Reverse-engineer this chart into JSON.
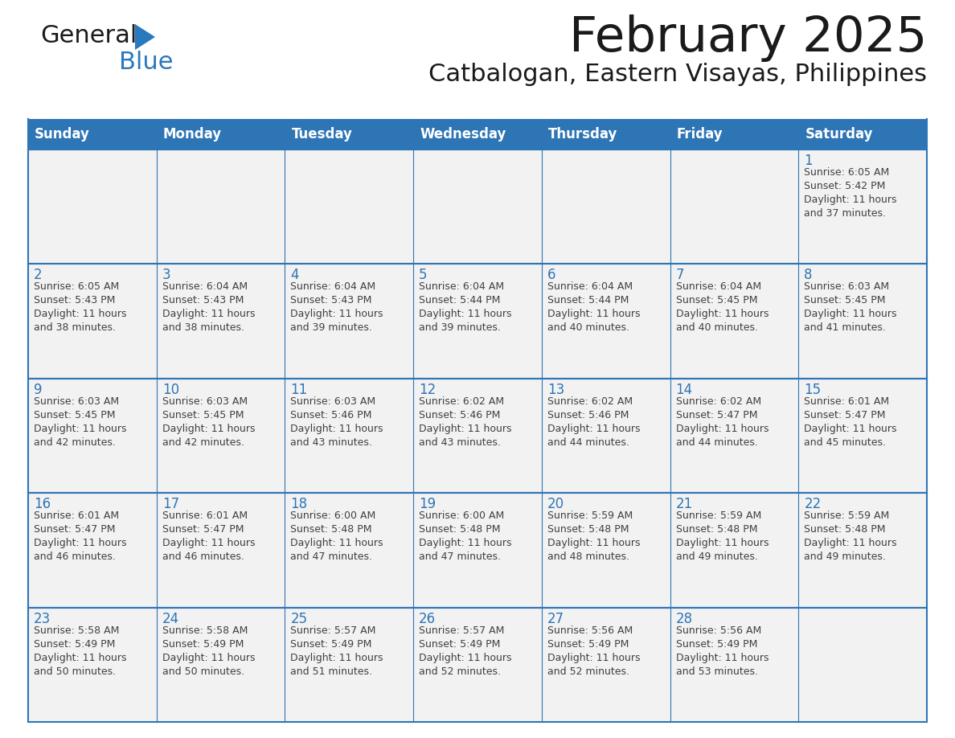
{
  "title": "February 2025",
  "subtitle": "Catbalogan, Eastern Visayas, Philippines",
  "days_of_week": [
    "Sunday",
    "Monday",
    "Tuesday",
    "Wednesday",
    "Thursday",
    "Friday",
    "Saturday"
  ],
  "header_bg": "#2E75B6",
  "header_text": "#FFFFFF",
  "cell_bg": "#F2F2F2",
  "border_color": "#2E75B6",
  "day_number_color": "#2E75B6",
  "info_text_color": "#404040",
  "title_color": "#1a1a1a",
  "subtitle_color": "#1a1a1a",
  "logo_general_color": "#1a1a1a",
  "logo_blue_color": "#2879BD",
  "calendar": [
    [
      null,
      null,
      null,
      null,
      null,
      null,
      1
    ],
    [
      2,
      3,
      4,
      5,
      6,
      7,
      8
    ],
    [
      9,
      10,
      11,
      12,
      13,
      14,
      15
    ],
    [
      16,
      17,
      18,
      19,
      20,
      21,
      22
    ],
    [
      23,
      24,
      25,
      26,
      27,
      28,
      null
    ]
  ],
  "sunrise_data": {
    "1": "6:05 AM",
    "2": "6:05 AM",
    "3": "6:04 AM",
    "4": "6:04 AM",
    "5": "6:04 AM",
    "6": "6:04 AM",
    "7": "6:04 AM",
    "8": "6:03 AM",
    "9": "6:03 AM",
    "10": "6:03 AM",
    "11": "6:03 AM",
    "12": "6:02 AM",
    "13": "6:02 AM",
    "14": "6:02 AM",
    "15": "6:01 AM",
    "16": "6:01 AM",
    "17": "6:01 AM",
    "18": "6:00 AM",
    "19": "6:00 AM",
    "20": "5:59 AM",
    "21": "5:59 AM",
    "22": "5:59 AM",
    "23": "5:58 AM",
    "24": "5:58 AM",
    "25": "5:57 AM",
    "26": "5:57 AM",
    "27": "5:56 AM",
    "28": "5:56 AM"
  },
  "sunset_data": {
    "1": "5:42 PM",
    "2": "5:43 PM",
    "3": "5:43 PM",
    "4": "5:43 PM",
    "5": "5:44 PM",
    "6": "5:44 PM",
    "7": "5:45 PM",
    "8": "5:45 PM",
    "9": "5:45 PM",
    "10": "5:45 PM",
    "11": "5:46 PM",
    "12": "5:46 PM",
    "13": "5:46 PM",
    "14": "5:47 PM",
    "15": "5:47 PM",
    "16": "5:47 PM",
    "17": "5:47 PM",
    "18": "5:48 PM",
    "19": "5:48 PM",
    "20": "5:48 PM",
    "21": "5:48 PM",
    "22": "5:48 PM",
    "23": "5:49 PM",
    "24": "5:49 PM",
    "25": "5:49 PM",
    "26": "5:49 PM",
    "27": "5:49 PM",
    "28": "5:49 PM"
  },
  "daylight_data": {
    "1": "11 hours and 37 minutes.",
    "2": "11 hours and 38 minutes.",
    "3": "11 hours and 38 minutes.",
    "4": "11 hours and 39 minutes.",
    "5": "11 hours and 39 minutes.",
    "6": "11 hours and 40 minutes.",
    "7": "11 hours and 40 minutes.",
    "8": "11 hours and 41 minutes.",
    "9": "11 hours and 42 minutes.",
    "10": "11 hours and 42 minutes.",
    "11": "11 hours and 43 minutes.",
    "12": "11 hours and 43 minutes.",
    "13": "11 hours and 44 minutes.",
    "14": "11 hours and 44 minutes.",
    "15": "11 hours and 45 minutes.",
    "16": "11 hours and 46 minutes.",
    "17": "11 hours and 46 minutes.",
    "18": "11 hours and 47 minutes.",
    "19": "11 hours and 47 minutes.",
    "20": "11 hours and 48 minutes.",
    "21": "11 hours and 49 minutes.",
    "22": "11 hours and 49 minutes.",
    "23": "11 hours and 50 minutes.",
    "24": "11 hours and 50 minutes.",
    "25": "11 hours and 51 minutes.",
    "26": "11 hours and 52 minutes.",
    "27": "11 hours and 52 minutes.",
    "28": "11 hours and 53 minutes."
  }
}
